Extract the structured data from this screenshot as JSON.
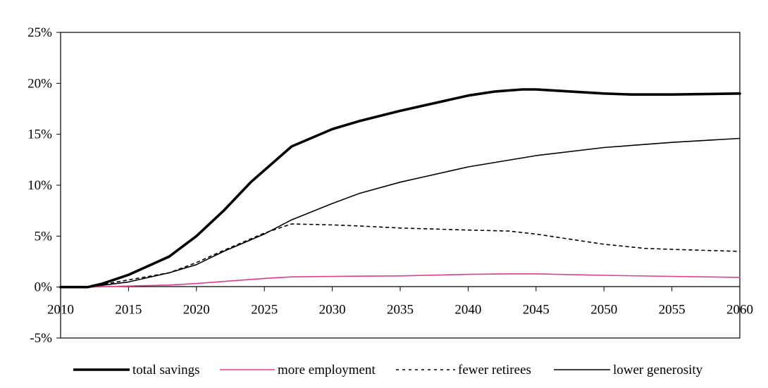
{
  "chart_data": {
    "type": "line",
    "title": "",
    "xlabel": "",
    "ylabel": "",
    "xlim": [
      2010,
      2060
    ],
    "ylim": [
      -5,
      25
    ],
    "x_ticks": [
      "2010",
      "2015",
      "2020",
      "2025",
      "2030",
      "2035",
      "2040",
      "2045",
      "2050",
      "2055",
      "2060"
    ],
    "y_ticks": [
      "25%",
      "20%",
      "15%",
      "10%",
      "5%",
      "0%",
      "-5%"
    ],
    "grid": false,
    "legend_position": "bottom",
    "series": [
      {
        "name": "total savings",
        "color": "#000000",
        "style": "thick",
        "x": [
          2010,
          2012,
          2013,
          2015,
          2018,
          2020,
          2022,
          2024,
          2027,
          2030,
          2032,
          2035,
          2040,
          2042,
          2044,
          2045,
          2050,
          2052,
          2055,
          2060
        ],
        "y": [
          0,
          0,
          0.3,
          1.2,
          3.0,
          5.0,
          7.5,
          10.3,
          13.8,
          15.5,
          16.3,
          17.3,
          18.8,
          19.2,
          19.4,
          19.4,
          19.0,
          18.9,
          18.9,
          19.0
        ]
      },
      {
        "name": "more employment",
        "color": "#e6398a",
        "style": "thin",
        "x": [
          2010,
          2012,
          2015,
          2018,
          2020,
          2022,
          2025,
          2027,
          2030,
          2035,
          2040,
          2043,
          2045,
          2050,
          2055,
          2060
        ],
        "y": [
          0,
          0,
          0.1,
          0.2,
          0.35,
          0.55,
          0.85,
          1.0,
          1.05,
          1.1,
          1.25,
          1.3,
          1.3,
          1.15,
          1.05,
          0.95
        ]
      },
      {
        "name": "fewer retirees",
        "color": "#000000",
        "style": "dashed",
        "x": [
          2010,
          2012,
          2015,
          2018,
          2020,
          2022,
          2025,
          2027,
          2030,
          2032,
          2035,
          2040,
          2043,
          2045,
          2048,
          2050,
          2053,
          2055,
          2060
        ],
        "y": [
          0,
          0,
          0.7,
          1.4,
          2.4,
          3.6,
          5.3,
          6.2,
          6.1,
          6.0,
          5.8,
          5.6,
          5.5,
          5.2,
          4.6,
          4.2,
          3.8,
          3.7,
          3.5
        ]
      },
      {
        "name": "lower generosity",
        "color": "#000000",
        "style": "thin",
        "x": [
          2010,
          2012,
          2015,
          2018,
          2020,
          2022,
          2025,
          2027,
          2030,
          2032,
          2035,
          2040,
          2045,
          2050,
          2055,
          2060
        ],
        "y": [
          0,
          0,
          0.5,
          1.4,
          2.2,
          3.5,
          5.2,
          6.6,
          8.2,
          9.2,
          10.3,
          11.8,
          12.9,
          13.7,
          14.2,
          14.6
        ]
      }
    ]
  }
}
